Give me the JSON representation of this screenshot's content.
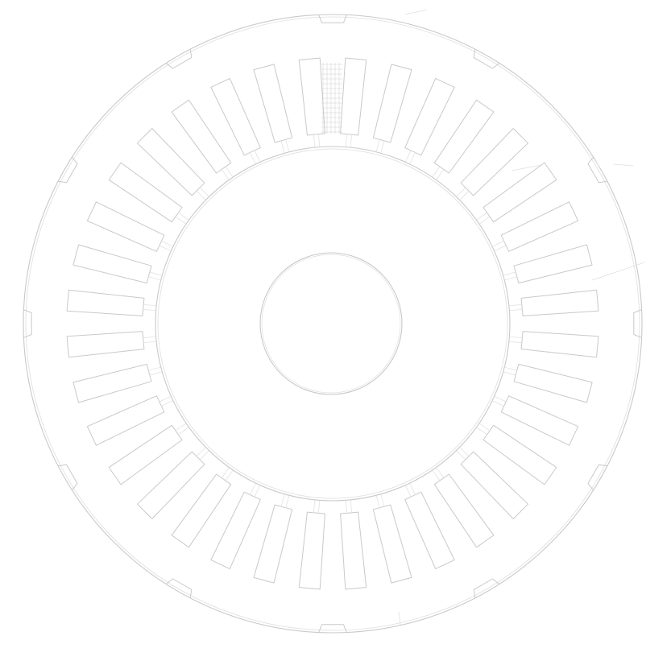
{
  "drawing": {
    "subject": "stator-lamination",
    "slot_count": 36,
    "colors": {
      "background": "#ffffff",
      "line": "#c9c9c9",
      "line_light": "#dedede",
      "hatch": "#cfcfcf"
    }
  }
}
